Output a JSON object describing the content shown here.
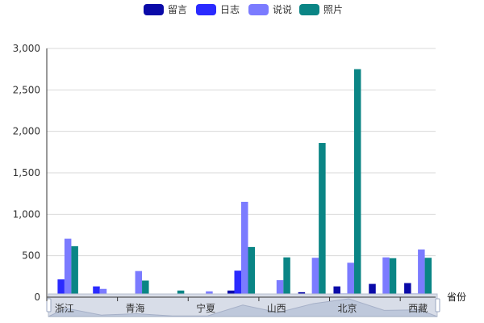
{
  "chart_data": {
    "type": "bar",
    "categories": [
      "浙江",
      "",
      "青海",
      "",
      "宁夏",
      "",
      "山西",
      "",
      "北京",
      "",
      "西藏"
    ],
    "series": [
      {
        "name": "留言",
        "color": "#0a0aa8",
        "values": [
          15,
          25,
          5,
          5,
          10,
          80,
          40,
          60,
          130,
          160,
          170
        ]
      },
      {
        "name": "日志",
        "color": "#2a2aff",
        "values": [
          215,
          130,
          5,
          5,
          35,
          320,
          40,
          40,
          45,
          40,
          45
        ]
      },
      {
        "name": "说说",
        "color": "#7b7bff",
        "values": [
          705,
          100,
          315,
          10,
          70,
          1150,
          205,
          475,
          415,
          480,
          575
        ]
      },
      {
        "name": "照片",
        "color": "#0a8585",
        "values": [
          615,
          25,
          200,
          80,
          10,
          605,
          480,
          1860,
          2750,
          470,
          475
        ]
      }
    ],
    "title": "",
    "xlabel": "省份",
    "ylabel": "",
    "ylim": [
      0,
      3000
    ],
    "yticks": [
      "0",
      "500",
      "1,000",
      "1,500",
      "2,000",
      "2,500",
      "3,000"
    ],
    "grid": true,
    "legend_position": "top-center"
  }
}
